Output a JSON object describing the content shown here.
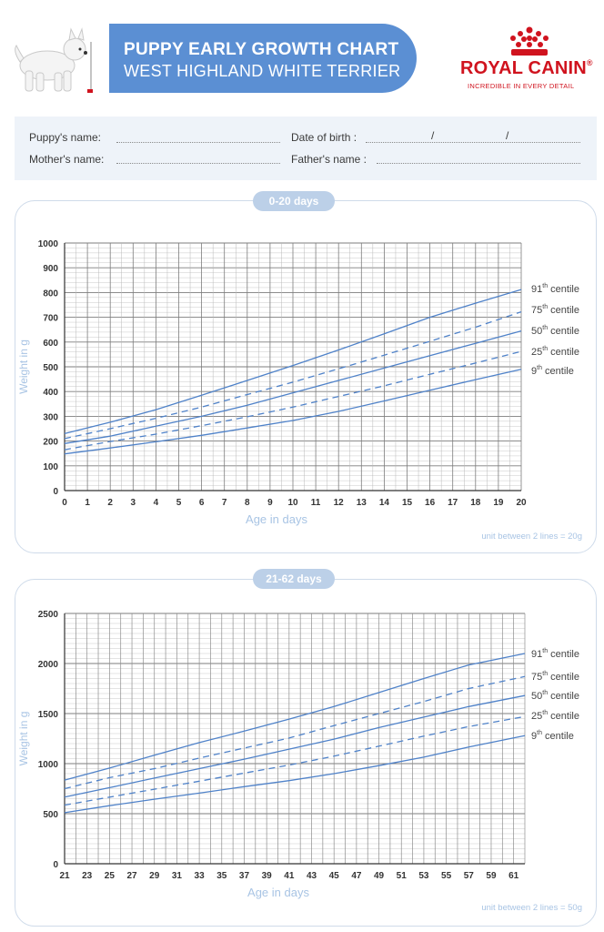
{
  "header": {
    "title": "PUPPY EARLY GROWTH CHART",
    "subtitle": "WEST HIGHLAND WHITE TERRIER"
  },
  "brand": {
    "name": "ROYAL CANIN",
    "registered_mark": "®",
    "tagline": "INCREDIBLE IN EVERY DETAIL"
  },
  "form": {
    "puppy_name_label": "Puppy's name:",
    "mother_name_label": "Mother's name:",
    "date_of_birth_label": "Date of birth :",
    "father_name_label": "Father's name :",
    "date_separator": "/"
  },
  "colors": {
    "curve": "#4f82c9",
    "grid": "#9a9a9a",
    "axis_title": "#a8c4e4",
    "brand_red": "#d0131e",
    "header_blue": "#5b8fd3"
  },
  "chart_data": [
    {
      "type": "line",
      "section_label": "0-20 days",
      "xlabel": "Age in days",
      "ylabel": "Weight in g",
      "note": "unit between 2 lines = 20g",
      "xlim": [
        0,
        20
      ],
      "ylim": [
        0,
        1000
      ],
      "x_ticks": [
        0,
        1,
        2,
        3,
        4,
        5,
        6,
        7,
        8,
        9,
        10,
        11,
        12,
        13,
        14,
        15,
        16,
        17,
        18,
        19,
        20
      ],
      "y_ticks": [
        0,
        100,
        200,
        300,
        400,
        500,
        600,
        700,
        800,
        900,
        1000
      ],
      "minor_y_step": 20,
      "grid": true,
      "legend": "right",
      "series": [
        {
          "name": "91th centile",
          "style": "solid",
          "x": [
            0,
            2,
            4,
            6,
            8,
            10,
            12,
            14,
            16,
            18,
            20
          ],
          "values": [
            230,
            276,
            327,
            385,
            445,
            505,
            568,
            633,
            700,
            757,
            812
          ]
        },
        {
          "name": "75th centile",
          "style": "dashed",
          "x": [
            0,
            2,
            4,
            6,
            8,
            10,
            12,
            14,
            16,
            18,
            20
          ],
          "values": [
            210,
            250,
            292,
            337,
            388,
            438,
            492,
            547,
            603,
            660,
            722
          ]
        },
        {
          "name": "50th centile",
          "style": "solid",
          "x": [
            0,
            2,
            4,
            6,
            8,
            10,
            12,
            14,
            16,
            18,
            20
          ],
          "values": [
            190,
            220,
            260,
            300,
            345,
            395,
            445,
            495,
            545,
            595,
            645
          ]
        },
        {
          "name": "25th centile",
          "style": "dashed",
          "x": [
            0,
            2,
            4,
            6,
            8,
            10,
            12,
            14,
            16,
            18,
            20
          ],
          "values": [
            165,
            198,
            228,
            262,
            298,
            337,
            380,
            423,
            470,
            515,
            562
          ]
        },
        {
          "name": "9th centile",
          "style": "solid",
          "x": [
            0,
            2,
            4,
            6,
            8,
            10,
            12,
            14,
            16,
            18,
            20
          ],
          "values": [
            148,
            172,
            197,
            223,
            253,
            283,
            320,
            362,
            405,
            448,
            490
          ]
        }
      ],
      "legend_entries": [
        {
          "num": "91",
          "sup": "th",
          "word": "centile"
        },
        {
          "num": "75",
          "sup": "th",
          "word": "centile"
        },
        {
          "num": "50",
          "sup": "th",
          "word": "centile"
        },
        {
          "num": "25",
          "sup": "th",
          "word": "centile"
        },
        {
          "num": "9",
          "sup": "th",
          "word": "centile"
        }
      ]
    },
    {
      "type": "line",
      "section_label": "21-62 days",
      "xlabel": "Age in days",
      "ylabel": "Weight in g",
      "note": "unit between 2 lines = 50g",
      "xlim": [
        21,
        62
      ],
      "ylim": [
        0,
        2500
      ],
      "x_ticks": [
        21,
        23,
        25,
        27,
        29,
        31,
        33,
        35,
        37,
        39,
        41,
        43,
        45,
        47,
        49,
        51,
        53,
        55,
        57,
        59,
        61
      ],
      "y_ticks": [
        0,
        500,
        1000,
        1500,
        2000,
        2500
      ],
      "minor_y_step": 50,
      "grid": true,
      "legend": "right",
      "series": [
        {
          "name": "91th centile",
          "style": "solid",
          "x": [
            21,
            25,
            29,
            33,
            37,
            41,
            45,
            49,
            53,
            57,
            62
          ],
          "values": [
            835,
            955,
            1085,
            1210,
            1325,
            1445,
            1570,
            1710,
            1850,
            1985,
            2100
          ]
        },
        {
          "name": "75th centile",
          "style": "dashed",
          "x": [
            21,
            25,
            29,
            33,
            37,
            41,
            45,
            49,
            53,
            57,
            62
          ],
          "values": [
            750,
            860,
            950,
            1055,
            1155,
            1255,
            1380,
            1500,
            1620,
            1750,
            1870
          ]
        },
        {
          "name": "50th centile",
          "style": "solid",
          "x": [
            21,
            25,
            29,
            33,
            37,
            41,
            45,
            49,
            53,
            57,
            62
          ],
          "values": [
            665,
            760,
            855,
            950,
            1045,
            1145,
            1245,
            1360,
            1465,
            1570,
            1680
          ]
        },
        {
          "name": "25th centile",
          "style": "dashed",
          "x": [
            21,
            25,
            29,
            33,
            37,
            41,
            45,
            49,
            53,
            57,
            62
          ],
          "values": [
            585,
            665,
            745,
            825,
            905,
            985,
            1075,
            1175,
            1275,
            1370,
            1470
          ]
        },
        {
          "name": "9th centile",
          "style": "solid",
          "x": [
            21,
            25,
            29,
            33,
            37,
            41,
            45,
            49,
            53,
            57,
            62
          ],
          "values": [
            510,
            580,
            645,
            705,
            770,
            830,
            900,
            980,
            1065,
            1165,
            1280
          ]
        }
      ],
      "legend_entries": [
        {
          "num": "91",
          "sup": "th",
          "word": "centile"
        },
        {
          "num": "75",
          "sup": "th",
          "word": "centile"
        },
        {
          "num": "50",
          "sup": "th",
          "word": "centile"
        },
        {
          "num": "25",
          "sup": "th",
          "word": "centile"
        },
        {
          "num": "9",
          "sup": "th",
          "word": "centile"
        }
      ]
    }
  ]
}
